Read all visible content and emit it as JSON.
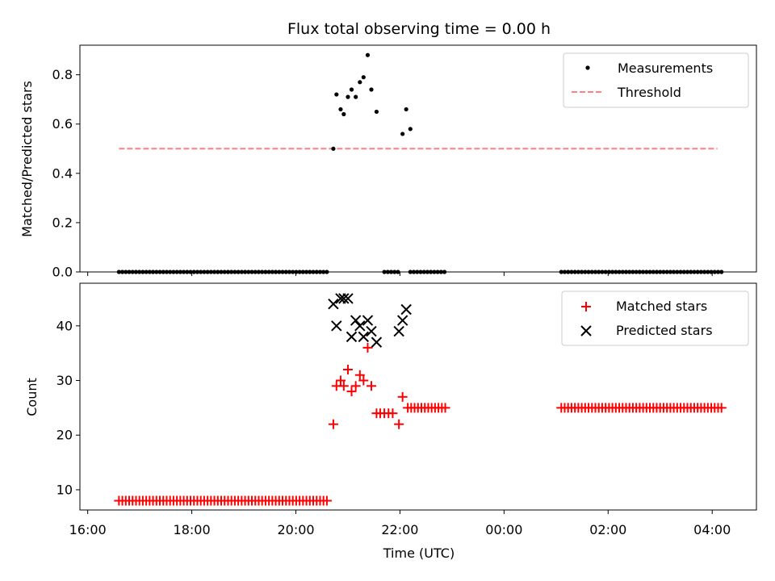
{
  "chart_data": {
    "type": "scatter",
    "title": "Flux total observing time = 0.00 h",
    "xlabel": "Time (UTC)",
    "x_unit": "hours since 16:00 UTC",
    "xlim": [
      -0.15,
      12.85
    ],
    "xticks": [
      {
        "value": 0,
        "label": "16:00"
      },
      {
        "value": 2,
        "label": "18:00"
      },
      {
        "value": 4,
        "label": "20:00"
      },
      {
        "value": 6,
        "label": "22:00"
      },
      {
        "value": 8,
        "label": "00:00"
      },
      {
        "value": 10,
        "label": "02:00"
      },
      {
        "value": 12,
        "label": "04:00"
      }
    ],
    "top": {
      "ylabel": "Matched/Predicted stars",
      "ylim": [
        0,
        0.92
      ],
      "yticks": [
        0.0,
        0.2,
        0.4,
        0.6,
        0.8
      ],
      "ytick_labels": [
        "0.0",
        "0.2",
        "0.4",
        "0.6",
        "0.8"
      ],
      "legend_position": "top-right",
      "measurements": {
        "name": "Measurements",
        "zero_ranges": [
          [
            0.6,
            4.65,
            0.0655
          ],
          [
            5.7,
            6.0,
            0.0655
          ],
          [
            6.2,
            6.9,
            0.0655
          ],
          [
            9.1,
            12.2,
            0.0655
          ]
        ],
        "points": [
          {
            "x": 4.72,
            "y": 0.5
          },
          {
            "x": 4.78,
            "y": 0.72
          },
          {
            "x": 4.86,
            "y": 0.66
          },
          {
            "x": 4.92,
            "y": 0.64
          },
          {
            "x": 5.0,
            "y": 0.71
          },
          {
            "x": 5.07,
            "y": 0.74
          },
          {
            "x": 5.15,
            "y": 0.71
          },
          {
            "x": 5.23,
            "y": 0.77
          },
          {
            "x": 5.3,
            "y": 0.79
          },
          {
            "x": 5.38,
            "y": 0.88
          },
          {
            "x": 5.45,
            "y": 0.74
          },
          {
            "x": 5.55,
            "y": 0.65
          },
          {
            "x": 6.05,
            "y": 0.56
          },
          {
            "x": 6.12,
            "y": 0.66
          },
          {
            "x": 6.2,
            "y": 0.58
          }
        ]
      },
      "threshold": {
        "name": "Threshold",
        "value": 0.5,
        "x_range": [
          0.6,
          12.1
        ],
        "color": "#ff8080"
      }
    },
    "bottom": {
      "ylabel": "Count",
      "ylim": [
        6.3,
        47.8
      ],
      "yticks": [
        10,
        20,
        30,
        40
      ],
      "ytick_labels": [
        "10",
        "20",
        "30",
        "40"
      ],
      "legend_position": "top-right",
      "matched": {
        "name": "Matched stars",
        "color": "#ff0000",
        "ranges": [
          {
            "from": 0.6,
            "to": 4.65,
            "step": 0.0655,
            "value": 8
          },
          {
            "from": 6.15,
            "to": 6.9,
            "step": 0.0655,
            "value": 25
          },
          {
            "from": 9.1,
            "to": 12.2,
            "step": 0.0655,
            "value": 25
          }
        ],
        "points": [
          {
            "x": 4.72,
            "y": 22
          },
          {
            "x": 4.78,
            "y": 29
          },
          {
            "x": 4.86,
            "y": 30
          },
          {
            "x": 4.92,
            "y": 29
          },
          {
            "x": 5.0,
            "y": 32
          },
          {
            "x": 5.07,
            "y": 28
          },
          {
            "x": 5.15,
            "y": 29
          },
          {
            "x": 5.23,
            "y": 31
          },
          {
            "x": 5.3,
            "y": 30
          },
          {
            "x": 5.38,
            "y": 36
          },
          {
            "x": 5.45,
            "y": 29
          },
          {
            "x": 5.55,
            "y": 24
          },
          {
            "x": 5.62,
            "y": 24
          },
          {
            "x": 5.7,
            "y": 24
          },
          {
            "x": 5.78,
            "y": 24
          },
          {
            "x": 5.86,
            "y": 24
          },
          {
            "x": 5.98,
            "y": 22
          },
          {
            "x": 6.05,
            "y": 27
          }
        ]
      },
      "predicted": {
        "name": "Predicted stars",
        "color": "#000000",
        "points": [
          {
            "x": 4.72,
            "y": 44
          },
          {
            "x": 4.78,
            "y": 40
          },
          {
            "x": 4.86,
            "y": 45
          },
          {
            "x": 4.92,
            "y": 45
          },
          {
            "x": 5.0,
            "y": 45
          },
          {
            "x": 5.07,
            "y": 38
          },
          {
            "x": 5.15,
            "y": 41
          },
          {
            "x": 5.23,
            "y": 40
          },
          {
            "x": 5.3,
            "y": 38
          },
          {
            "x": 5.38,
            "y": 41
          },
          {
            "x": 5.45,
            "y": 39
          },
          {
            "x": 5.55,
            "y": 37
          },
          {
            "x": 5.98,
            "y": 39
          },
          {
            "x": 6.05,
            "y": 41
          },
          {
            "x": 6.12,
            "y": 43
          }
        ]
      }
    }
  }
}
